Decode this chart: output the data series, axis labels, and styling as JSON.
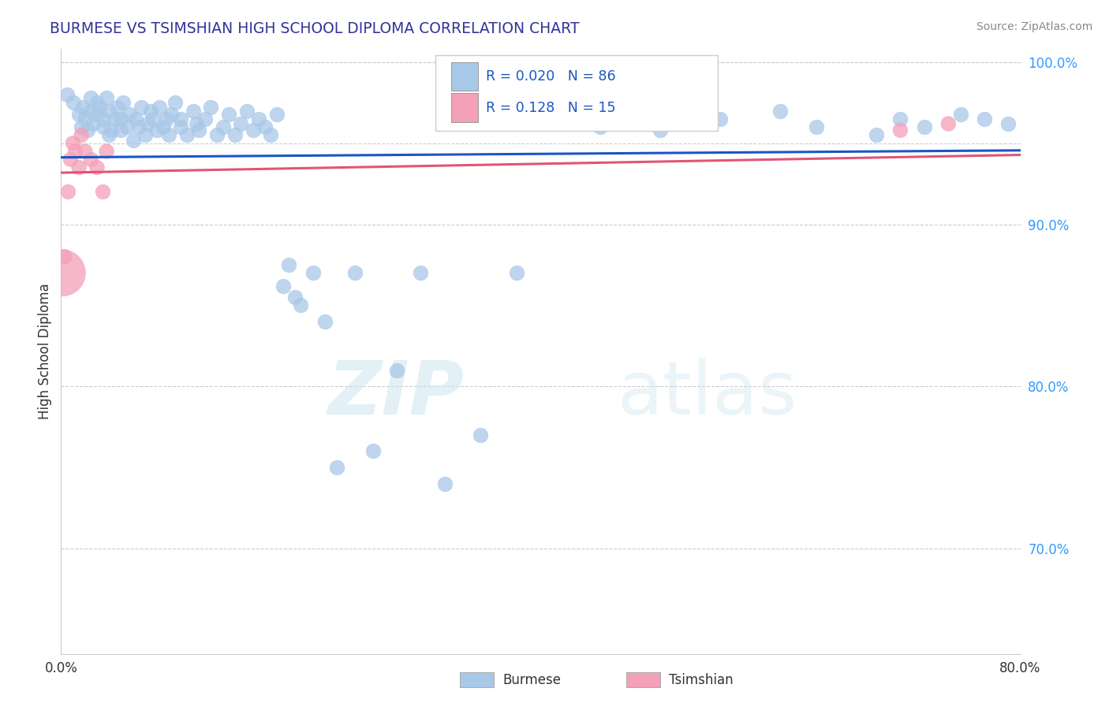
{
  "title": "BURMESE VS TSIMSHIAN HIGH SCHOOL DIPLOMA CORRELATION CHART",
  "source": "Source: ZipAtlas.com",
  "ylabel": "High School Diploma",
  "xlim": [
    0.0,
    0.8
  ],
  "ylim": [
    0.635,
    1.008
  ],
  "xticks": [
    0.0,
    0.1,
    0.2,
    0.3,
    0.4,
    0.5,
    0.6,
    0.7,
    0.8
  ],
  "xticklabels": [
    "0.0%",
    "",
    "",
    "",
    "",
    "",
    "",
    "",
    "80.0%"
  ],
  "ytick_vals": [
    0.7,
    0.8,
    0.9,
    1.0
  ],
  "ytick_labels": [
    "70.0%",
    "80.0%",
    "90.0%",
    "100.0%"
  ],
  "burmese_R": 0.02,
  "burmese_N": 86,
  "tsimshian_R": 0.128,
  "tsimshian_N": 15,
  "burmese_color": "#a8c8e8",
  "tsimshian_color": "#f4a0b8",
  "burmese_line_color": "#1a56c4",
  "tsimshian_line_color": "#e05575",
  "legend_label_burmese": "Burmese",
  "legend_label_tsimshian": "Tsimshian",
  "watermark_zip": "ZIP",
  "watermark_atlas": "atlas",
  "background_color": "#ffffff",
  "grid_color": "#cccccc",
  "title_color": "#333399",
  "source_color": "#888888",
  "ytick_color": "#3399ff",
  "burmese_x": [
    0.005,
    0.01,
    0.015,
    0.017,
    0.018,
    0.02,
    0.022,
    0.025,
    0.025,
    0.027,
    0.03,
    0.03,
    0.032,
    0.035,
    0.035,
    0.038,
    0.04,
    0.04,
    0.042,
    0.045,
    0.047,
    0.05,
    0.05,
    0.052,
    0.055,
    0.057,
    0.06,
    0.062,
    0.065,
    0.067,
    0.07,
    0.072,
    0.075,
    0.077,
    0.08,
    0.082,
    0.085,
    0.088,
    0.09,
    0.092,
    0.095,
    0.1,
    0.1,
    0.105,
    0.11,
    0.113,
    0.115,
    0.12,
    0.125,
    0.13,
    0.135,
    0.14,
    0.145,
    0.15,
    0.155,
    0.16,
    0.165,
    0.17,
    0.175,
    0.18,
    0.185,
    0.19,
    0.195,
    0.2,
    0.21,
    0.22,
    0.23,
    0.245,
    0.26,
    0.28,
    0.3,
    0.32,
    0.35,
    0.38,
    0.42,
    0.45,
    0.5,
    0.55,
    0.6,
    0.63,
    0.68,
    0.7,
    0.72,
    0.75,
    0.77,
    0.79
  ],
  "burmese_y": [
    0.98,
    0.975,
    0.968,
    0.96,
    0.972,
    0.965,
    0.958,
    0.97,
    0.978,
    0.962,
    0.975,
    0.968,
    0.972,
    0.96,
    0.965,
    0.978,
    0.955,
    0.97,
    0.958,
    0.965,
    0.972,
    0.958,
    0.965,
    0.975,
    0.96,
    0.968,
    0.952,
    0.965,
    0.96,
    0.972,
    0.955,
    0.962,
    0.97,
    0.965,
    0.958,
    0.972,
    0.96,
    0.965,
    0.955,
    0.968,
    0.975,
    0.96,
    0.965,
    0.955,
    0.97,
    0.962,
    0.958,
    0.965,
    0.972,
    0.955,
    0.96,
    0.968,
    0.955,
    0.962,
    0.97,
    0.958,
    0.965,
    0.96,
    0.955,
    0.968,
    0.862,
    0.875,
    0.855,
    0.85,
    0.87,
    0.84,
    0.75,
    0.87,
    0.76,
    0.81,
    0.87,
    0.74,
    0.77,
    0.87,
    0.965,
    0.96,
    0.958,
    0.965,
    0.97,
    0.96,
    0.955,
    0.965,
    0.96,
    0.968,
    0.965,
    0.962
  ],
  "tsimshian_x": [
    0.001,
    0.003,
    0.006,
    0.008,
    0.01,
    0.012,
    0.015,
    0.017,
    0.02,
    0.025,
    0.03,
    0.035,
    0.038,
    0.7,
    0.74
  ],
  "tsimshian_y": [
    0.87,
    0.88,
    0.92,
    0.94,
    0.95,
    0.945,
    0.935,
    0.955,
    0.945,
    0.94,
    0.935,
    0.92,
    0.945,
    0.958,
    0.962
  ],
  "tsimshian_sizes": [
    1800,
    180,
    180,
    180,
    180,
    180,
    180,
    180,
    180,
    180,
    180,
    180,
    180,
    180,
    180
  ],
  "burmese_size": 180
}
